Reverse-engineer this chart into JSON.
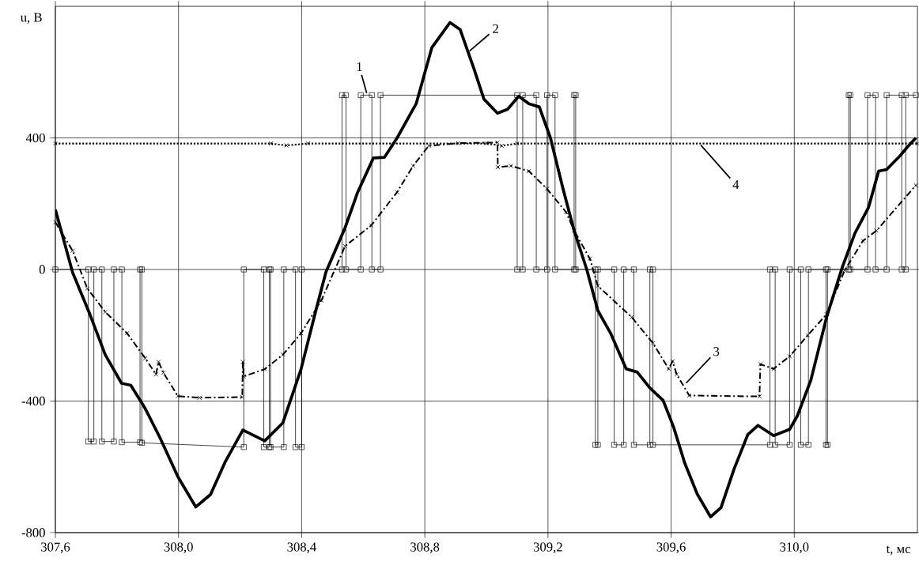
{
  "chart_data": {
    "type": "line",
    "xlabel": "t, мс",
    "ylabel": "u, B",
    "xlim": [
      307.6,
      310.4
    ],
    "ylim": [
      -800,
      800
    ],
    "xticks": [
      {
        "value": 307.6,
        "label": "307,6"
      },
      {
        "value": 308.0,
        "label": "308,0"
      },
      {
        "value": 308.4,
        "label": "308,4"
      },
      {
        "value": 308.8,
        "label": "308,8"
      },
      {
        "value": 309.2,
        "label": "309,2"
      },
      {
        "value": 309.6,
        "label": "309,6"
      },
      {
        "value": 310.0,
        "label": "310,0"
      }
    ],
    "yticks": [
      -800,
      -400,
      0,
      400
    ],
    "grid": true,
    "series": [
      {
        "color": "#000000",
        "marker": "square",
        "line_style": "solid",
        "x": [
          307.6,
          307.707,
          307.707,
          307.725,
          307.725,
          307.751,
          307.751,
          307.79,
          307.79,
          307.816,
          307.816,
          307.875,
          307.875,
          307.881,
          307.881,
          308.212,
          308.212,
          308.277,
          308.277,
          308.295,
          308.295,
          308.299,
          308.299,
          308.342,
          308.342,
          308.38,
          308.38,
          308.4,
          308.4,
          308.531,
          308.531,
          308.544,
          308.544,
          308.592,
          308.592,
          308.628,
          308.628,
          308.656,
          308.656,
          309.1,
          309.1,
          309.118,
          309.118,
          309.162,
          309.162,
          309.197,
          309.197,
          309.223,
          309.223,
          309.285,
          309.285,
          309.29,
          309.29,
          309.354,
          309.354,
          309.362,
          309.362,
          309.415,
          309.415,
          309.446,
          309.446,
          309.479,
          309.479,
          309.531,
          309.531,
          309.541,
          309.541,
          309.921,
          309.921,
          309.938,
          309.938,
          309.985,
          309.985,
          310.021,
          310.021,
          310.046,
          310.046,
          310.103,
          310.103,
          310.108,
          310.108,
          310.177,
          310.177,
          310.182,
          310.182,
          310.238,
          310.238,
          310.264,
          310.264,
          310.3,
          310.3,
          310.349,
          310.349,
          310.362,
          310.362,
          310.395
        ],
        "values": [
          0,
          0,
          -523,
          -523,
          0,
          0,
          -523,
          -523,
          0,
          0,
          -525,
          -525,
          0,
          0,
          -527,
          -540,
          0,
          0,
          -540,
          -540,
          0,
          0,
          -540,
          -540,
          0,
          0,
          -540,
          -540,
          0,
          0,
          530,
          530,
          0,
          0,
          530,
          530,
          0,
          0,
          530,
          530,
          0,
          0,
          530,
          530,
          0,
          0,
          530,
          530,
          0,
          0,
          530,
          530,
          0,
          0,
          -533,
          -533,
          0,
          0,
          -533,
          -533,
          0,
          0,
          -533,
          -533,
          0,
          0,
          -533,
          -533,
          0,
          0,
          -533,
          -533,
          0,
          0,
          -533,
          -533,
          0,
          0,
          -533,
          -533,
          0,
          0,
          530,
          530,
          0,
          0,
          530,
          530,
          0,
          0,
          530,
          530,
          0,
          0,
          530,
          530
        ]
      },
      {
        "color": "#000000",
        "marker": "none",
        "line_style": "solid",
        "x": [
          307.6,
          307.656,
          307.709,
          307.762,
          307.815,
          307.845,
          307.892,
          307.939,
          307.998,
          308.056,
          308.104,
          308.151,
          308.209,
          308.28,
          308.339,
          308.398,
          308.446,
          308.479,
          308.541,
          308.582,
          308.633,
          308.669,
          308.71,
          308.772,
          308.823,
          308.882,
          308.915,
          308.959,
          308.992,
          309.036,
          309.069,
          309.105,
          309.138,
          309.172,
          309.208,
          309.249,
          309.285,
          309.326,
          309.362,
          309.403,
          309.454,
          309.49,
          309.531,
          309.574,
          309.608,
          309.644,
          309.685,
          309.728,
          309.762,
          309.805,
          309.849,
          309.882,
          309.933,
          309.985,
          310.01,
          310.054,
          310.105,
          310.156,
          310.197,
          310.241,
          310.274,
          310.3,
          310.344,
          310.369,
          310.395
        ],
        "values": [
          182,
          -9,
          -129,
          -259,
          -346,
          -352,
          -423,
          -510,
          -630,
          -722,
          -684,
          -586,
          -488,
          -521,
          -466,
          -303,
          -125,
          -7,
          127,
          235,
          339,
          341,
          400,
          504,
          675,
          751,
          729,
          612,
          518,
          475,
          487,
          527,
          504,
          494,
          400,
          245,
          118,
          0,
          -125,
          -193,
          -302,
          -312,
          -360,
          -398,
          -479,
          -588,
          -683,
          -752,
          -724,
          -605,
          -502,
          -474,
          -505,
          -486,
          -445,
          -336,
          -145,
          7,
          110,
          188,
          299,
          304,
          346,
          374,
          400
        ]
      },
      {
        "color": "#000000",
        "marker": "cross",
        "line_style": "dashdot",
        "x": [
          307.6,
          307.656,
          307.704,
          307.762,
          307.833,
          307.892,
          307.927,
          307.935,
          307.951,
          307.998,
          308.068,
          308.207,
          308.209,
          308.212,
          308.28,
          308.339,
          308.398,
          308.464,
          308.541,
          308.626,
          308.71,
          308.762,
          308.813,
          308.908,
          309.036,
          309.037,
          309.079,
          309.138,
          309.197,
          309.259,
          309.285,
          309.336,
          309.362,
          309.472,
          309.541,
          309.592,
          309.605,
          309.618,
          309.659,
          309.887,
          309.89,
          309.933,
          309.985,
          310.044,
          310.105,
          310.164,
          310.223,
          310.267,
          310.395
        ],
        "values": [
          144,
          57,
          -58,
          -129,
          -194,
          -270,
          -319,
          -281,
          -314,
          -385,
          -390,
          -388,
          -281,
          -325,
          -303,
          -259,
          -194,
          -94,
          71,
          134,
          235,
          315,
          376,
          384,
          386,
          311,
          315,
          299,
          245,
          174,
          118,
          33,
          -50,
          -145,
          -224,
          -302,
          -279,
          -319,
          -383,
          -386,
          -288,
          -302,
          -264,
          -200,
          -136,
          -2,
          87,
          118,
          256
        ]
      },
      {
        "color": "#000000",
        "marker": "cross",
        "line_style": "dotted",
        "x": [
          307.6,
          308.3,
          308.35,
          308.42,
          309.0,
          309.05,
          309.1,
          310.4
        ],
        "values": [
          383,
          383,
          377,
          383,
          383,
          376,
          383,
          383
        ]
      }
    ],
    "annotations": [
      {
        "text": "1",
        "x": 308.613,
        "y": 530
      },
      {
        "text": "2",
        "x": 308.94,
        "y": 660
      },
      {
        "text": "3",
        "x": 309.644,
        "y": -350
      },
      {
        "text": "4",
        "x": 309.692,
        "y": 383
      }
    ]
  }
}
